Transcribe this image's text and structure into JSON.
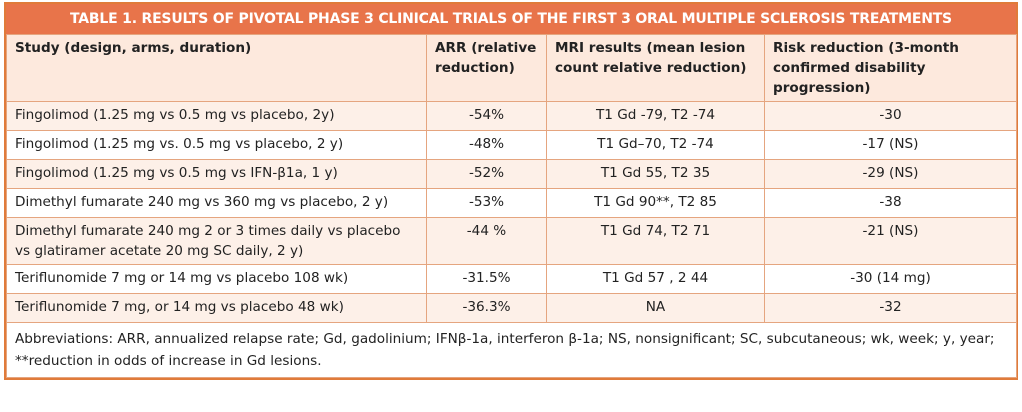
{
  "title": "TABLE 1. RESULTS OF PIVOTAL PHASE 3 CLINICAL TRIALS OF THE FIRST 3 ORAL MULTIPLE SCLEROSIS TREATMENTS",
  "headers": [
    "Study (design, arms, duration)",
    "ARR (relative reduction)",
    "MRI results (mean lesion count relative reduction)",
    "Risk reduction (3-month confirmed disability progression)"
  ],
  "rows": [
    [
      "Fingolimod (1.25 mg vs 0.5 mg vs placebo, 2y)",
      "-54%",
      "T1 Gd -79, T2 -74",
      "-30"
    ],
    [
      "Fingolimod (1.25 mg vs. 0.5 mg vs placebo, 2 y)",
      "-48%",
      "T1 Gd–70, T2 -74",
      "-17 (NS)"
    ],
    [
      "Fingolimod (1.25 mg vs 0.5 mg vs IFN-β1a, 1 y)",
      "-52%",
      "T1 Gd 55, T2 35",
      "-29 (NS)"
    ],
    [
      "Dimethyl fumarate 240 mg vs 360 mg vs placebo, 2 y)",
      "-53%",
      "T1 Gd 90**, T2 85",
      "-38"
    ],
    [
      "Dimethyl fumarate 240 mg 2 or 3 times daily vs placebo vs glatiramer acetate 20 mg SC daily, 2 y)",
      "-44 %",
      "T1 Gd 74, T2 71",
      "-21 (NS)"
    ],
    [
      "Teriflunomide 7 mg or 14 mg vs placebo 108 wk)",
      "-31.5%",
      "T1 Gd 57 , 2 44",
      "-30 (14 mg)"
    ],
    [
      "Teriflunomide 7 mg, or 14 mg vs placebo 48 wk)",
      "-36.3%",
      "NA",
      "-32"
    ]
  ],
  "footnote": "Abbreviations: ARR, annualized relapse rate; Gd, gadolinium; IFNβ-1a, interferon β-1a; NS, nonsignificant; SC, subcutaneous; wk, week; y, year; **reduction in odds of increase in Gd lesions."
}
